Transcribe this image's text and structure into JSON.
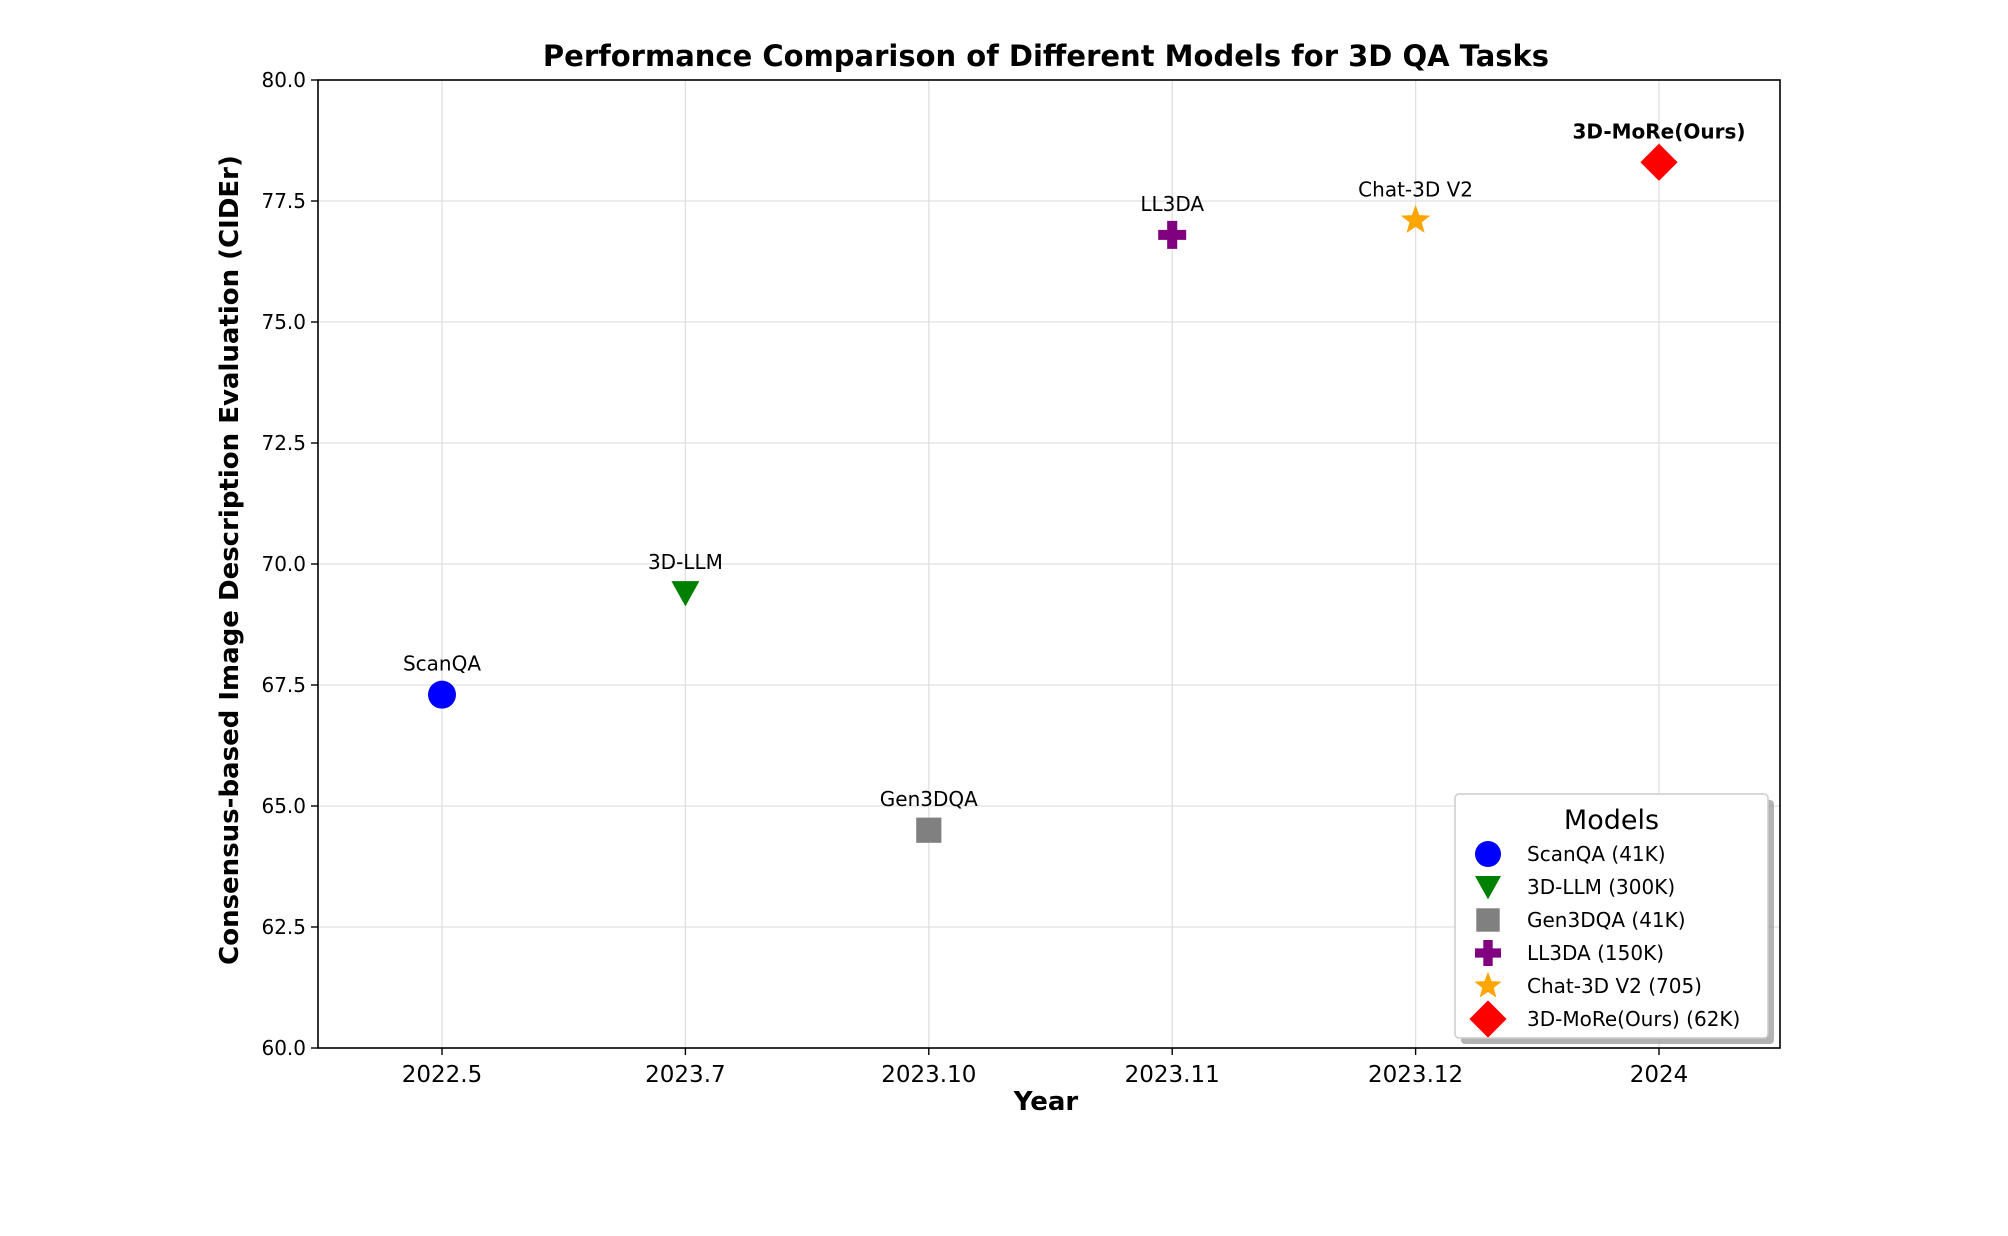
{
  "chart_data": {
    "type": "scatter",
    "title": "Performance Comparison of Different Models for 3D QA Tasks",
    "xlabel": "Year",
    "ylabel": "Consensus-based Image Description Evaluation (CIDEr)",
    "categories": [
      "2022.5",
      "2023.7",
      "2023.10",
      "2023.11",
      "2023.12",
      "2024"
    ],
    "ylim": [
      60.0,
      80.0
    ],
    "yticks": [
      "60.0",
      "62.5",
      "65.0",
      "67.5",
      "70.0",
      "72.5",
      "75.0",
      "77.5",
      "80.0"
    ],
    "grid": true,
    "legend": {
      "title": "Models",
      "placement": "lower-right"
    },
    "points": [
      {
        "name": "ScanQA",
        "x": "2022.5",
        "y": 67.3,
        "legend": "ScanQA (41K)",
        "color": "#0000ff",
        "marker": "circle",
        "label_bold": false
      },
      {
        "name": "3D-LLM",
        "x": "2023.7",
        "y": 69.4,
        "legend": "3D-LLM (300K)",
        "color": "#008000",
        "marker": "triangle-down",
        "label_bold": false
      },
      {
        "name": "Gen3DQA",
        "x": "2023.10",
        "y": 64.5,
        "legend": "Gen3DQA (41K)",
        "color": "#808080",
        "marker": "square",
        "label_bold": false
      },
      {
        "name": "LL3DA",
        "x": "2023.11",
        "y": 76.8,
        "legend": "LL3DA (150K)",
        "color": "#800080",
        "marker": "plus",
        "label_bold": false
      },
      {
        "name": "Chat-3D V2",
        "x": "2023.12",
        "y": 77.1,
        "legend": "Chat-3D V2 (705)",
        "color": "#ffa500",
        "marker": "star",
        "label_bold": false
      },
      {
        "name": "3D-MoRe(Ours)",
        "x": "2024",
        "y": 78.3,
        "legend": "3D-MoRe(Ours) (62K)",
        "color": "#ff0000",
        "marker": "diamond",
        "label_bold": true
      }
    ]
  }
}
